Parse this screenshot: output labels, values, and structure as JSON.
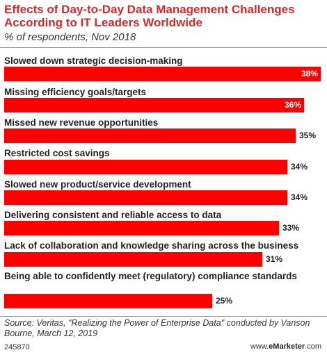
{
  "header": {
    "title": "Effects of Day-to-Day Data Management Challenges According to IT Leaders Worldwide",
    "subtitle": "% of respondents, Nov 2018"
  },
  "chart_data": {
    "type": "bar",
    "orientation": "horizontal",
    "title": "Effects of Day-to-Day Data Management Challenges According to IT Leaders Worldwide",
    "subtitle": "% of respondents, Nov 2018",
    "categories": [
      "Slowed down strategic decision-making",
      "Missing efficiency goals/targets",
      "Missed new revenue opportunities",
      "Restricted cost savings",
      "Slowed new product/service development",
      "Delivering consistent and reliable access to data",
      "Lack of collaboration and knowledge sharing across the business",
      "Being able to confidently meet (regulatory) compliance standards"
    ],
    "values": [
      38,
      36,
      35,
      34,
      34,
      33,
      31,
      25
    ],
    "value_labels": [
      "38%",
      "36%",
      "35%",
      "34%",
      "34%",
      "33%",
      "31%",
      "25%"
    ],
    "xlabel": "",
    "ylabel": "",
    "xlim": [
      0,
      38
    ],
    "grid": false,
    "legend": "none",
    "bar_color": "#ff0000"
  },
  "footer": {
    "source": "Source: Veritas, \"Realizing the Power of Enterprise Data\" conducted by Vanson Bourne, March 12, 2019",
    "chart_id": "245870",
    "brand_prefix": "www.",
    "brand_name": "eMarketer",
    "brand_suffix": ".com"
  },
  "colors": {
    "title": "#d9262b",
    "bar": "#ff0000",
    "text": "#222222"
  }
}
